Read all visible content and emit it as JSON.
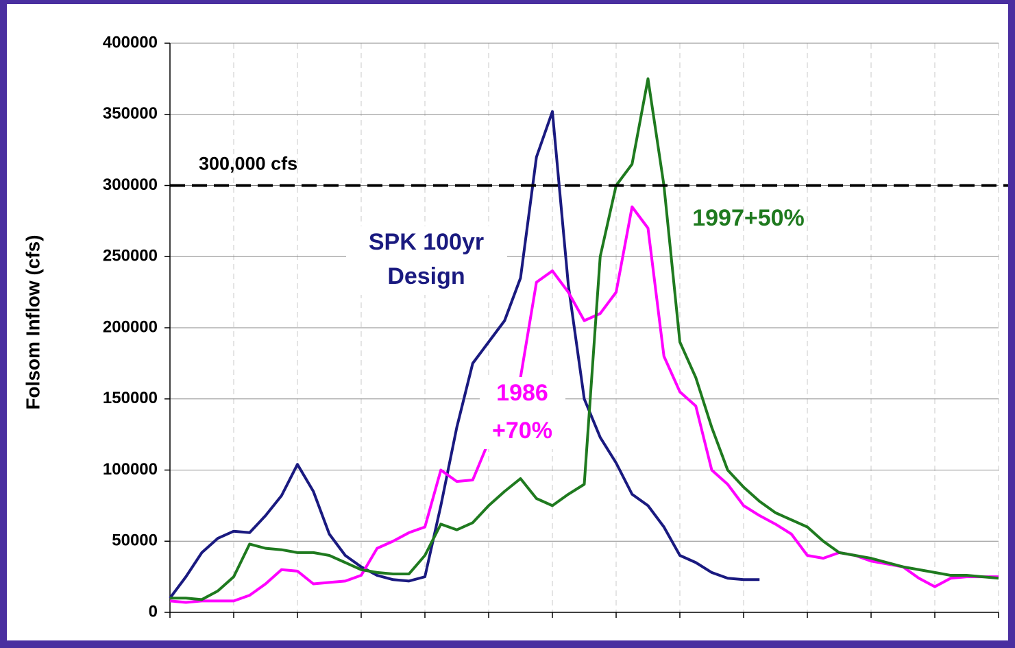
{
  "chart_data": {
    "type": "line",
    "y_label": "Folsom Inflow (cfs)",
    "ylim": [
      0,
      400000
    ],
    "yticks": [
      0,
      50000,
      100000,
      150000,
      200000,
      250000,
      300000,
      350000,
      400000
    ],
    "xlim": [
      0,
      13
    ],
    "xticks": [
      0,
      1,
      2,
      3,
      4,
      5,
      6,
      7,
      8,
      9,
      10,
      11,
      12,
      13
    ],
    "grid": true,
    "reference_line": {
      "value": 300000,
      "label": "300,000 cfs"
    },
    "x": [
      0,
      0.25,
      0.5,
      0.75,
      1,
      1.25,
      1.5,
      1.75,
      2,
      2.25,
      2.5,
      2.75,
      3,
      3.25,
      3.5,
      3.75,
      4,
      4.25,
      4.5,
      4.75,
      5,
      5.25,
      5.5,
      5.75,
      6,
      6.25,
      6.5,
      6.75,
      7,
      7.25,
      7.5,
      7.75,
      8,
      8.25,
      8.5,
      8.75,
      9,
      9.25,
      9.5,
      9.75,
      10,
      10.25,
      10.5,
      10.75,
      11,
      11.25,
      11.5,
      11.75,
      12,
      12.25,
      12.5,
      12.75,
      13
    ],
    "series": [
      {
        "name": [
          "SPK  100yr",
          "Design"
        ],
        "color": "#1a1a80",
        "values": [
          10000,
          25000,
          42000,
          52000,
          57000,
          56000,
          68000,
          82000,
          104000,
          85000,
          55000,
          40000,
          32000,
          26000,
          23000,
          22000,
          25000,
          75000,
          130000,
          175000,
          190000,
          205000,
          235000,
          320000,
          352000,
          230000,
          150000,
          123000,
          105000,
          83000,
          75000,
          60000,
          40000,
          35000,
          28000,
          24000,
          23000,
          23000,
          null,
          null,
          null,
          null,
          null,
          null,
          null,
          null,
          null,
          null,
          null,
          null,
          null,
          null,
          null
        ]
      },
      {
        "name": [
          "1986",
          "+70%"
        ],
        "color": "#ff00ff",
        "values": [
          8000,
          7000,
          8000,
          8000,
          8000,
          12000,
          20000,
          30000,
          29000,
          20000,
          21000,
          22000,
          26000,
          45000,
          50000,
          56000,
          60000,
          100000,
          92000,
          93000,
          120000,
          140000,
          165000,
          232000,
          240000,
          225000,
          205000,
          210000,
          225000,
          285000,
          270000,
          180000,
          155000,
          145000,
          100000,
          90000,
          75000,
          68000,
          62000,
          55000,
          40000,
          38000,
          42000,
          40000,
          36000,
          34000,
          32000,
          24000,
          18000,
          24000,
          25000,
          25000,
          25000
        ]
      },
      {
        "name": [
          "1997+50%"
        ],
        "color": "#1f7a1f",
        "values": [
          10000,
          10000,
          9000,
          15000,
          25000,
          48000,
          45000,
          44000,
          42000,
          42000,
          40000,
          35000,
          30000,
          28000,
          27000,
          27000,
          40000,
          62000,
          58000,
          63000,
          75000,
          85000,
          94000,
          80000,
          75000,
          83000,
          90000,
          250000,
          300000,
          315000,
          375000,
          300000,
          190000,
          165000,
          130000,
          100000,
          88000,
          78000,
          70000,
          65000,
          60000,
          50000,
          42000,
          40000,
          38000,
          35000,
          32000,
          30000,
          28000,
          26000,
          26000,
          25000,
          24000
        ]
      }
    ]
  }
}
